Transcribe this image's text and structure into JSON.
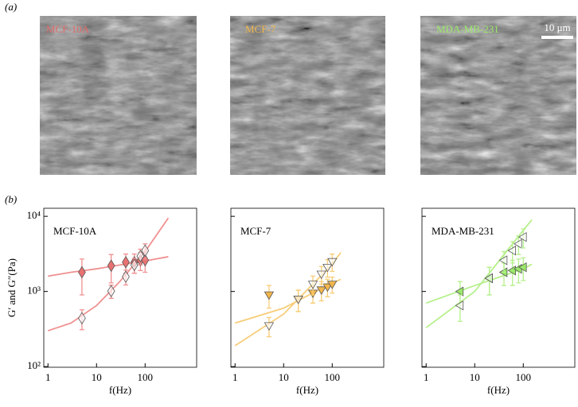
{
  "panel_labels": {
    "a": "(a)",
    "b": "(b)"
  },
  "images": [
    {
      "label": "MCF-10A",
      "color": "#e06a6a"
    },
    {
      "label": "MCF-7",
      "color": "#f2b64c"
    },
    {
      "label": "MDA-MB-231",
      "color": "#9be86a"
    }
  ],
  "scale_bar": "10 μm",
  "chart_data": [
    {
      "type": "scatter",
      "title": "MCF-10A",
      "xlabel": "f(Hz)",
      "ylabel": "G′ and G″(Pa)",
      "log": true,
      "marker": "diamond",
      "color": "#e87272",
      "fit_color": "#f09090",
      "show_ytick_labels": true,
      "xlim": [
        0.82,
        1150
      ],
      "ylim": [
        98,
        12800
      ],
      "xticks": [
        1,
        10,
        100
      ],
      "yticks": [
        {
          "value": 100,
          "label": "10²"
        },
        {
          "value": 1000,
          "label": "10³"
        },
        {
          "value": 10000,
          "label": "10⁴"
        }
      ],
      "series": [
        {
          "filled": true,
          "x": [
            5,
            20,
            40,
            60,
            80,
            100
          ],
          "values": [
            1800,
            2200,
            2450,
            2450,
            2600,
            2600
          ],
          "errors": [
            900,
            900,
            700,
            700,
            700,
            800
          ]
        },
        {
          "filled": false,
          "x": [
            5,
            20,
            40,
            60,
            80,
            100
          ],
          "values": [
            440,
            1010,
            1570,
            2250,
            2950,
            3500
          ],
          "errors": [
            130,
            200,
            350,
            500,
            700,
            800
          ]
        },
        {
          "style": "line",
          "x": [
            1,
            3,
            10,
            30,
            100,
            300
          ],
          "values": [
            1600,
            1800,
            2000,
            2250,
            2550,
            2900
          ]
        },
        {
          "style": "line",
          "x": [
            1,
            3,
            10,
            30,
            100,
            300
          ],
          "values": [
            300,
            380,
            650,
            1350,
            3400,
            9500
          ]
        }
      ]
    },
    {
      "type": "scatter",
      "title": "MCF-7",
      "xlabel": "f(Hz)",
      "log": true,
      "marker": "triangle-down",
      "color": "#f2b64c",
      "fit_color": "#f7cd78",
      "show_ytick_labels": false,
      "xlim": [
        0.82,
        1150
      ],
      "ylim": [
        98,
        12800
      ],
      "xticks": [
        1,
        10,
        100
      ],
      "yticks": [
        100,
        1000,
        10000
      ],
      "series": [
        {
          "filled": true,
          "x": [
            5,
            20,
            40,
            60,
            80,
            100
          ],
          "values": [
            900,
            790,
            950,
            1050,
            1150,
            1250
          ],
          "errors": [
            300,
            250,
            250,
            300,
            300,
            300
          ]
        },
        {
          "filled": false,
          "x": [
            5,
            20,
            40,
            60,
            80,
            100
          ],
          "values": [
            350,
            790,
            1250,
            1700,
            2100,
            2500
          ],
          "errors": [
            100,
            250,
            350,
            450,
            550,
            650
          ]
        },
        {
          "style": "line",
          "x": [
            1,
            10,
            100,
            150
          ],
          "values": [
            380,
            600,
            1300,
            1450
          ]
        },
        {
          "style": "line",
          "x": [
            1,
            10,
            100,
            150
          ],
          "values": [
            190,
            500,
            2300,
            3300
          ]
        }
      ]
    },
    {
      "type": "scatter",
      "title": "MDA-MB-231",
      "xlabel": "f(Hz)",
      "log": true,
      "marker": "triangle-left",
      "color": "#9be86a",
      "fit_color": "#b6f08c",
      "show_ytick_labels": false,
      "xlim": [
        0.82,
        1150
      ],
      "ylim": [
        98,
        12800
      ],
      "xticks": [
        1,
        10,
        100
      ],
      "yticks": [
        100,
        1000,
        10000
      ],
      "series": [
        {
          "filled": true,
          "x": [
            5,
            20,
            40,
            60,
            80,
            100
          ],
          "values": [
            1000,
            1500,
            1800,
            1900,
            2000,
            2100
          ],
          "errors": [
            350,
            600,
            600,
            700,
            700,
            700
          ]
        },
        {
          "filled": false,
          "x": [
            5,
            20,
            40,
            60,
            80,
            100
          ],
          "values": [
            650,
            1500,
            2600,
            3500,
            4300,
            5300
          ],
          "errors": [
            250,
            600,
            800,
            1100,
            1200,
            1500
          ]
        },
        {
          "style": "line",
          "x": [
            1,
            10,
            100,
            150
          ],
          "values": [
            700,
            1200,
            2000,
            2300
          ]
        },
        {
          "style": "line",
          "x": [
            1,
            10,
            100,
            150
          ],
          "values": [
            330,
            1000,
            6500,
            9000
          ]
        }
      ]
    }
  ]
}
